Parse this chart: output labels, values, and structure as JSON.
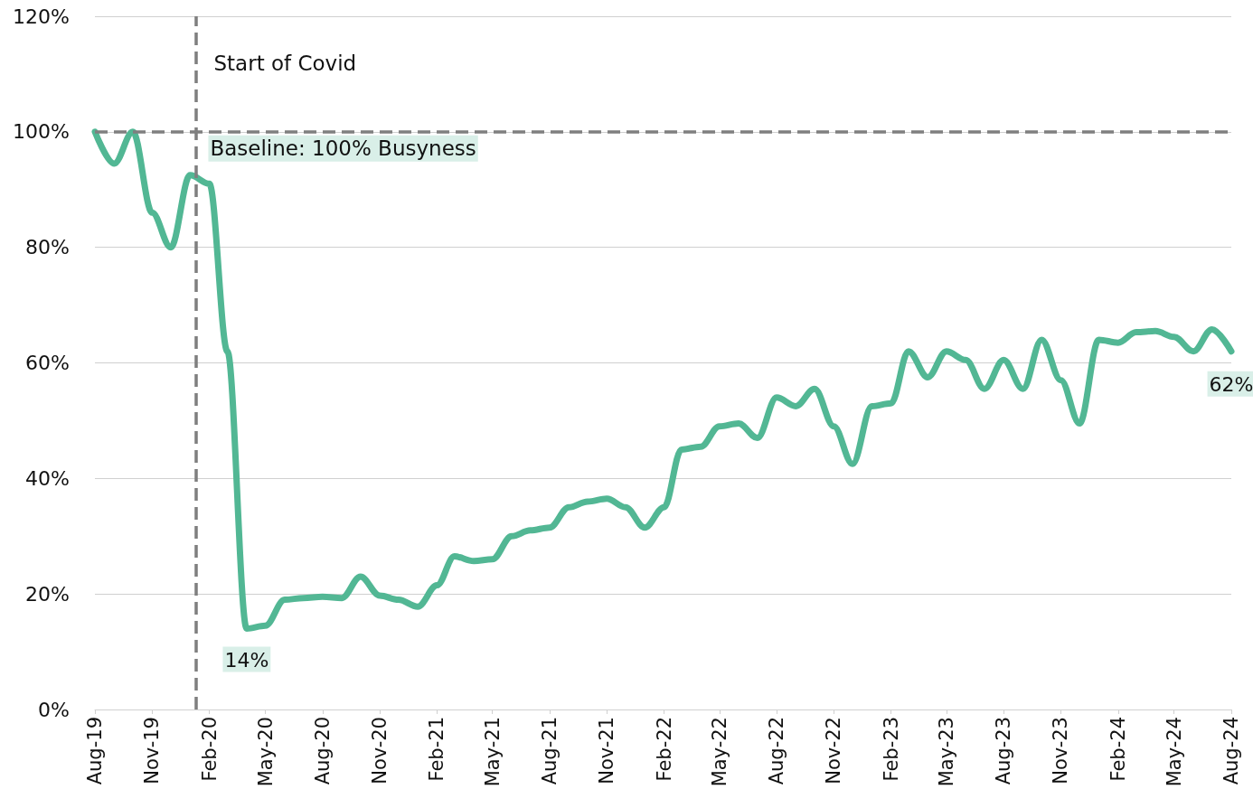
{
  "chart_data": {
    "type": "line",
    "x": [
      "2019-08",
      "2019-09",
      "2019-10",
      "2019-11",
      "2019-12",
      "2020-01",
      "2020-02",
      "2020-03",
      "2020-04",
      "2020-05",
      "2020-06",
      "2020-07",
      "2020-08",
      "2020-09",
      "2020-10",
      "2020-11",
      "2020-12",
      "2021-01",
      "2021-02",
      "2021-03",
      "2021-04",
      "2021-05",
      "2021-06",
      "2021-07",
      "2021-08",
      "2021-09",
      "2021-10",
      "2021-11",
      "2021-12",
      "2022-01",
      "2022-02",
      "2022-03",
      "2022-04",
      "2022-05",
      "2022-06",
      "2022-07",
      "2022-08",
      "2022-09",
      "2022-10",
      "2022-11",
      "2022-12",
      "2023-01",
      "2023-02",
      "2023-03",
      "2023-04",
      "2023-05",
      "2023-06",
      "2023-07",
      "2023-08",
      "2023-09",
      "2023-10",
      "2023-11",
      "2023-12",
      "2024-01",
      "2024-02",
      "2024-03",
      "2024-04",
      "2024-05",
      "2024-06",
      "2024-07",
      "2024-08"
    ],
    "series": [
      {
        "color": "#52b794",
        "values": [
          100,
          94.5,
          100,
          86,
          80,
          92.5,
          91,
          62,
          14,
          14.5,
          19,
          19.3,
          19.5,
          19.3,
          23,
          19.7,
          19,
          17.8,
          21.5,
          26.5,
          25.7,
          26,
          30,
          31,
          31.5,
          35,
          36,
          36.5,
          35,
          31.5,
          35,
          45,
          45.5,
          49,
          49.5,
          47,
          54,
          52.5,
          55.5,
          49,
          42.5,
          52.5,
          53,
          62,
          57.5,
          62,
          60.5,
          55.5,
          60.5,
          55.5,
          64,
          57,
          49.5,
          64,
          63.5,
          65.3,
          65.5,
          64.5,
          62,
          65.8,
          62
        ],
        "value_labels": [
          null,
          null,
          null,
          null,
          null,
          null,
          null,
          null,
          "14%",
          null,
          null,
          null,
          null,
          null,
          null,
          null,
          null,
          null,
          null,
          null,
          null,
          null,
          null,
          null,
          null,
          null,
          null,
          null,
          null,
          null,
          null,
          null,
          null,
          null,
          null,
          null,
          null,
          null,
          null,
          null,
          null,
          null,
          null,
          null,
          null,
          null,
          null,
          null,
          null,
          null,
          null,
          null,
          null,
          null,
          null,
          null,
          null,
          null,
          null,
          null,
          "62%"
        ]
      }
    ],
    "xlim": [
      "2019-08",
      "2024-08"
    ],
    "xticks": [
      {
        "value": "2019-08",
        "label": "Aug-19"
      },
      {
        "value": "2019-11",
        "label": "Nov-19"
      },
      {
        "value": "2020-02",
        "label": "Feb-20"
      },
      {
        "value": "2020-05",
        "label": "May-20"
      },
      {
        "value": "2020-08",
        "label": "Aug-20"
      },
      {
        "value": "2020-11",
        "label": "Nov-20"
      },
      {
        "value": "2021-02",
        "label": "Feb-21"
      },
      {
        "value": "2021-05",
        "label": "May-21"
      },
      {
        "value": "2021-08",
        "label": "Aug-21"
      },
      {
        "value": "2021-11",
        "label": "Nov-21"
      },
      {
        "value": "2022-02",
        "label": "Feb-22"
      },
      {
        "value": "2022-05",
        "label": "May-22"
      },
      {
        "value": "2022-08",
        "label": "Aug-22"
      },
      {
        "value": "2022-11",
        "label": "Nov-22"
      },
      {
        "value": "2023-02",
        "label": "Feb-23"
      },
      {
        "value": "2023-05",
        "label": "May-23"
      },
      {
        "value": "2023-08",
        "label": "Aug-23"
      },
      {
        "value": "2023-11",
        "label": "Nov-23"
      },
      {
        "value": "2024-02",
        "label": "Feb-24"
      },
      {
        "value": "2024-05",
        "label": "May-24"
      },
      {
        "value": "2024-08",
        "label": "Aug-24"
      }
    ],
    "ylim": [
      0,
      120
    ],
    "yticks": [
      {
        "value": 0,
        "label": "0%"
      },
      {
        "value": 20,
        "label": "20%"
      },
      {
        "value": 40,
        "label": "40%"
      },
      {
        "value": 60,
        "label": "60%"
      },
      {
        "value": 80,
        "label": "80%"
      },
      {
        "value": 100,
        "label": "100%"
      },
      {
        "value": 120,
        "label": "120%"
      }
    ],
    "grid": "y",
    "marker": "none",
    "line_style": "solid",
    "ref_lines": [
      {
        "axis": "x",
        "value": "2020-01-10",
        "label": "Start of Covid",
        "color": "#7f7f7f",
        "line_style": "dashed"
      },
      {
        "axis": "y",
        "value": 100,
        "label": "Baseline: 100% Busyness",
        "color": "#7f7f7f",
        "line_style": "dashed"
      }
    ]
  }
}
